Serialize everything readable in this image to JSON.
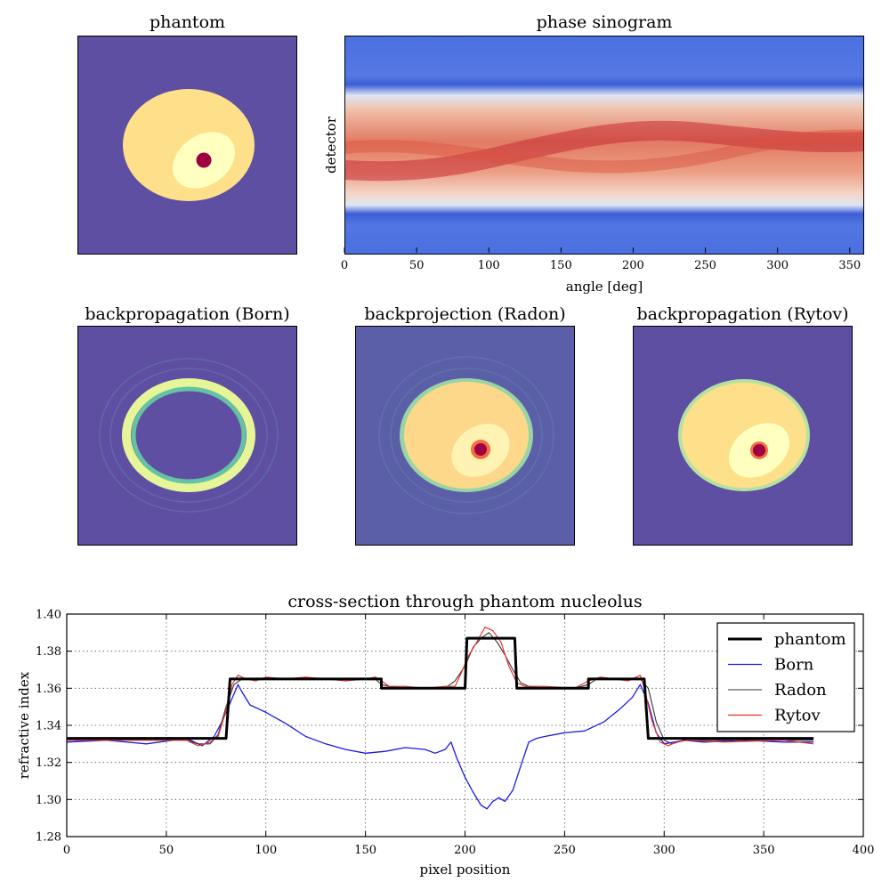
{
  "figure": {
    "phantom_title": "phantom",
    "sinogram_title": "phase sinogram",
    "sinogram_xlabel": "angle [deg]",
    "sinogram_ylabel": "detector",
    "sinogram_xticks": [
      "0",
      "50",
      "100",
      "150",
      "200",
      "250",
      "300",
      "350"
    ],
    "born_title": "backpropagation (Born)",
    "radon_title": "backprojection (Radon)",
    "rytov_title": "backpropagation (Rytov)"
  },
  "colors": {
    "background": "#5e4fa2",
    "cytoplasm": "#fee08b",
    "nucleus": "#ffffbf",
    "nucleolus": "#9e0142",
    "ring": "#e6f598",
    "ring_inner": "#66c2a5",
    "sino_low": "#4a6fe3",
    "sino_mid": "#f2dccf",
    "sino_high": "#d2343a",
    "series_phantom": "#000000",
    "series_born": "#1a1ae6",
    "series_radon": "#333333",
    "series_rytov": "#e8332d"
  },
  "chart_data": {
    "type": "line",
    "title": "cross-section through phantom nucleolus",
    "xlabel": "pixel position",
    "ylabel": "refractive index",
    "xlim": [
      0,
      400
    ],
    "ylim": [
      1.28,
      1.4
    ],
    "xticks": [
      0,
      50,
      100,
      150,
      200,
      250,
      300,
      350,
      400
    ],
    "yticks": [
      1.28,
      1.3,
      1.32,
      1.34,
      1.36,
      1.38,
      1.4
    ],
    "xtick_labels": [
      "0",
      "50",
      "100",
      "150",
      "200",
      "250",
      "300",
      "350",
      "400"
    ],
    "ytick_labels": [
      "1.28",
      "1.30",
      "1.32",
      "1.34",
      "1.36",
      "1.38",
      "1.40"
    ],
    "grid": true,
    "legend_position": "top-right",
    "series": [
      {
        "name": "phantom",
        "x": [
          0,
          80,
          82,
          158,
          158,
          200,
          201,
          225,
          226,
          262,
          262,
          290,
          292,
          375
        ],
        "y": [
          1.333,
          1.333,
          1.365,
          1.365,
          1.36,
          1.36,
          1.387,
          1.387,
          1.36,
          1.36,
          1.365,
          1.365,
          1.333,
          1.333
        ]
      },
      {
        "name": "Born",
        "x": [
          0,
          20,
          40,
          60,
          68,
          74,
          78,
          82,
          86,
          88,
          92,
          96,
          100,
          110,
          120,
          130,
          140,
          150,
          160,
          170,
          180,
          185,
          190,
          193,
          196,
          200,
          204,
          208,
          211,
          214,
          217,
          220,
          224,
          228,
          232,
          236,
          240,
          250,
          260,
          270,
          278,
          284,
          288,
          292,
          296,
          300,
          305,
          310,
          320,
          340,
          360,
          375
        ],
        "y": [
          1.331,
          1.332,
          1.33,
          1.333,
          1.329,
          1.334,
          1.342,
          1.352,
          1.362,
          1.358,
          1.351,
          1.349,
          1.347,
          1.341,
          1.334,
          1.33,
          1.327,
          1.325,
          1.326,
          1.328,
          1.327,
          1.325,
          1.327,
          1.331,
          1.322,
          1.312,
          1.304,
          1.297,
          1.295,
          1.299,
          1.301,
          1.299,
          1.305,
          1.318,
          1.331,
          1.333,
          1.334,
          1.336,
          1.337,
          1.342,
          1.349,
          1.355,
          1.362,
          1.352,
          1.336,
          1.33,
          1.331,
          1.332,
          1.331,
          1.332,
          1.331,
          1.331
        ]
      },
      {
        "name": "Radon",
        "x": [
          0,
          40,
          60,
          66,
          72,
          76,
          80,
          84,
          88,
          92,
          100,
          120,
          140,
          155,
          158,
          162,
          170,
          180,
          190,
          195,
          200,
          204,
          208,
          212,
          216,
          220,
          224,
          228,
          232,
          240,
          255,
          262,
          266,
          280,
          288,
          292,
          296,
          300,
          304,
          310,
          330,
          360,
          375
        ],
        "y": [
          1.332,
          1.332,
          1.332,
          1.33,
          1.33,
          1.335,
          1.35,
          1.362,
          1.365,
          1.365,
          1.365,
          1.365,
          1.365,
          1.365,
          1.362,
          1.361,
          1.36,
          1.36,
          1.36,
          1.364,
          1.372,
          1.382,
          1.387,
          1.39,
          1.385,
          1.378,
          1.37,
          1.363,
          1.361,
          1.36,
          1.36,
          1.362,
          1.365,
          1.365,
          1.365,
          1.36,
          1.342,
          1.332,
          1.33,
          1.332,
          1.332,
          1.332,
          1.332
        ]
      },
      {
        "name": "Rytov",
        "x": [
          0,
          40,
          60,
          66,
          72,
          76,
          80,
          83,
          86,
          90,
          95,
          100,
          110,
          120,
          130,
          140,
          150,
          155,
          158,
          162,
          170,
          180,
          190,
          195,
          198,
          202,
          206,
          210,
          214,
          218,
          222,
          226,
          230,
          240,
          255,
          262,
          268,
          275,
          282,
          286,
          288,
          290,
          294,
          298,
          302,
          306,
          312,
          330,
          360,
          375
        ],
        "y": [
          1.332,
          1.332,
          1.332,
          1.329,
          1.331,
          1.334,
          1.348,
          1.362,
          1.367,
          1.365,
          1.364,
          1.366,
          1.365,
          1.366,
          1.365,
          1.364,
          1.365,
          1.366,
          1.364,
          1.361,
          1.361,
          1.36,
          1.361,
          1.361,
          1.368,
          1.378,
          1.385,
          1.393,
          1.391,
          1.385,
          1.372,
          1.363,
          1.361,
          1.361,
          1.36,
          1.364,
          1.366,
          1.365,
          1.364,
          1.366,
          1.367,
          1.36,
          1.342,
          1.331,
          1.329,
          1.331,
          1.332,
          1.331,
          1.332,
          1.33
        ]
      }
    ]
  }
}
